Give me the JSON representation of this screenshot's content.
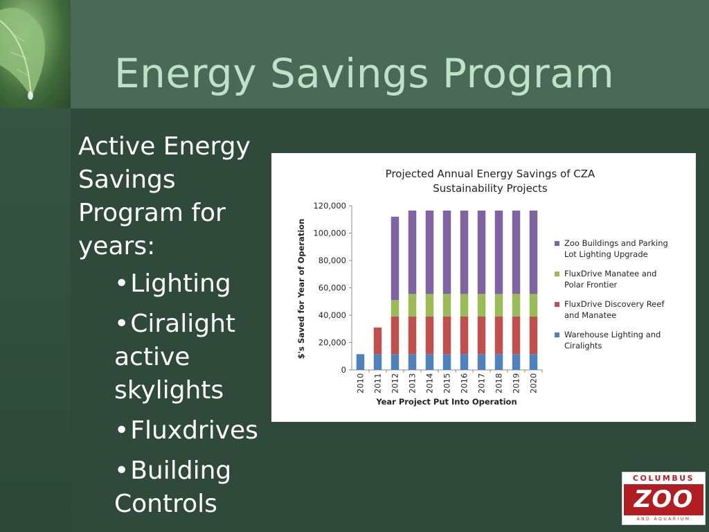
{
  "slide": {
    "title": "Energy Savings Program",
    "intro": "Active Energy Savings Program for years:",
    "bullets": [
      "Lighting",
      "Ciralight active skylights",
      "Fluxdrives",
      "Building Controls"
    ],
    "bullet_glyph": "•",
    "colors": {
      "title": "#bfe0c9",
      "header_band": "#4a6a57",
      "background": "#2f4a3b",
      "body_text": "#ffffff"
    }
  },
  "logo": {
    "top_text": "COLUMBUS",
    "main_text": "ZOO",
    "bottom_text": "AND AQUARIUM",
    "color": "#b01e23"
  },
  "chart_data": {
    "type": "bar",
    "stacked": true,
    "title": "Projected Annual Energy Savings of CZA Sustainability Projects",
    "title_lines": [
      "Projected Annual Energy Savings of CZA",
      "Sustainability Projects"
    ],
    "xlabel": "Year Project Put Into Operation",
    "ylabel": "$'s Saved for Year of Operation",
    "ylim": [
      0,
      120000
    ],
    "yticks": [
      0,
      20000,
      40000,
      60000,
      80000,
      100000,
      120000
    ],
    "ytick_labels": [
      "0",
      "20,000",
      "40,000",
      "60,000",
      "80,000",
      "100,000",
      "120,000"
    ],
    "categories": [
      "2010",
      "2011",
      "2012",
      "2013",
      "2014",
      "2015",
      "2016",
      "2017",
      "2018",
      "2019",
      "2020"
    ],
    "grid": false,
    "legend_position": "right",
    "series": [
      {
        "name": "Warehouse Lighting and Ciralights",
        "legend_lines": [
          "Warehouse Lighting and",
          "Ciralights"
        ],
        "color": "#4f81bd",
        "values": [
          11500,
          11500,
          11500,
          11500,
          11500,
          11500,
          11500,
          11500,
          11500,
          11500,
          11500
        ]
      },
      {
        "name": "FluxDrive Discovery Reef and Manatee",
        "legend_lines": [
          "FluxDrive Discovery Reef",
          "and Manatee"
        ],
        "color": "#c0504d",
        "values": [
          0,
          19500,
          27500,
          27500,
          27500,
          27500,
          27500,
          27500,
          27500,
          27500,
          27500
        ]
      },
      {
        "name": "FluxDrive Manatee and Polar Frontier",
        "legend_lines": [
          "FluxDrive Manatee and",
          "Polar Frontier"
        ],
        "color": "#9bbb59",
        "values": [
          0,
          0,
          12000,
          16500,
          16500,
          16500,
          16500,
          16500,
          16500,
          16500,
          16500
        ]
      },
      {
        "name": "Zoo Buildings and Parking Lot Lighting Upgrade",
        "legend_lines": [
          "Zoo Buildings and Parking",
          "Lot Lighting Upgrade"
        ],
        "color": "#8064a2",
        "values": [
          0,
          0,
          61000,
          61000,
          61000,
          61000,
          61000,
          61000,
          61000,
          61000,
          61000
        ]
      }
    ]
  }
}
